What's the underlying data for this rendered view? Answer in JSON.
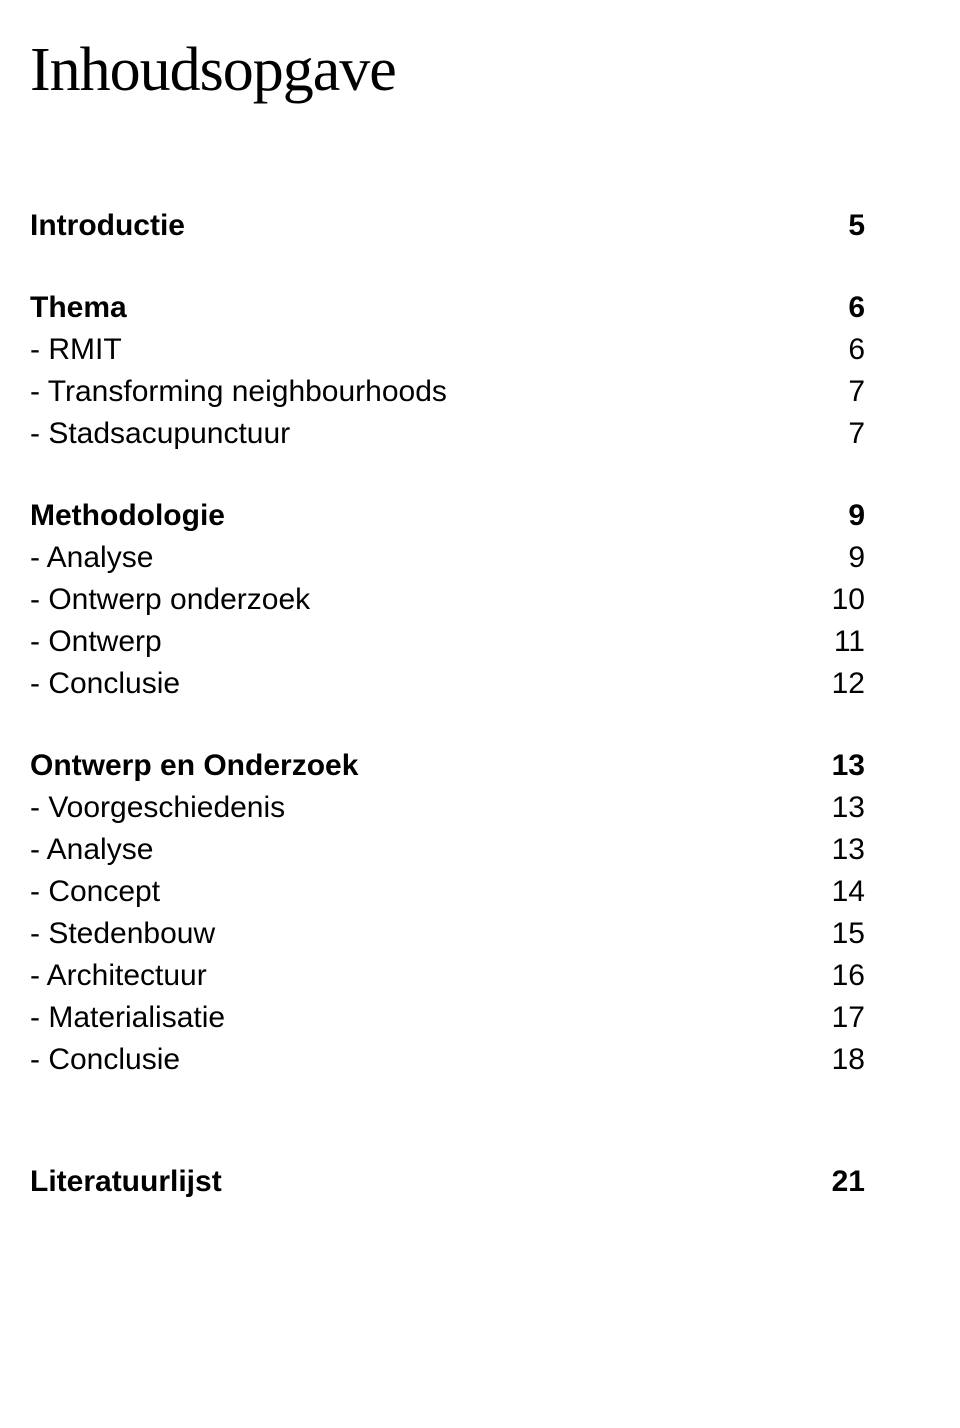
{
  "title": "Inhoudsopgave",
  "typography": {
    "title_fontsize": 62,
    "body_fontsize": 30,
    "title_font": "Georgia, serif",
    "body_font": "Arial, sans-serif"
  },
  "colors": {
    "background": "#ffffff",
    "text": "#000000"
  },
  "sections": [
    {
      "heading": {
        "label": "Introductie",
        "page": "5"
      },
      "items": []
    },
    {
      "heading": {
        "label": "Thema",
        "page": "6"
      },
      "items": [
        {
          "label": "- RMIT",
          "page": "6"
        },
        {
          "label": "- Transforming neighbourhoods",
          "page": "7"
        },
        {
          "label": "- Stadsacupunctuur",
          "page": "7"
        }
      ]
    },
    {
      "heading": {
        "label": "Methodologie",
        "page": "9"
      },
      "items": [
        {
          "label": "- Analyse",
          "page": "9"
        },
        {
          "label": "- Ontwerp onderzoek",
          "page": "10"
        },
        {
          "label": "- Ontwerp",
          "page": "11"
        },
        {
          "label": "- Conclusie",
          "page": "12"
        }
      ]
    },
    {
      "heading": {
        "label": "Ontwerp en Onderzoek",
        "page": "13"
      },
      "items": [
        {
          "label": "- Voorgeschiedenis",
          "page": "13"
        },
        {
          "label": "- Analyse",
          "page": "13"
        },
        {
          "label": "- Concept",
          "page": "14"
        },
        {
          "label": "- Stedenbouw",
          "page": "15"
        },
        {
          "label": "- Architectuur",
          "page": "16"
        },
        {
          "label": "- Materialisatie",
          "page": "17"
        },
        {
          "label": "- Conclusie",
          "page": "18"
        }
      ]
    },
    {
      "heading": {
        "label": "Literatuurlijst",
        "page": "21"
      },
      "items": []
    }
  ]
}
